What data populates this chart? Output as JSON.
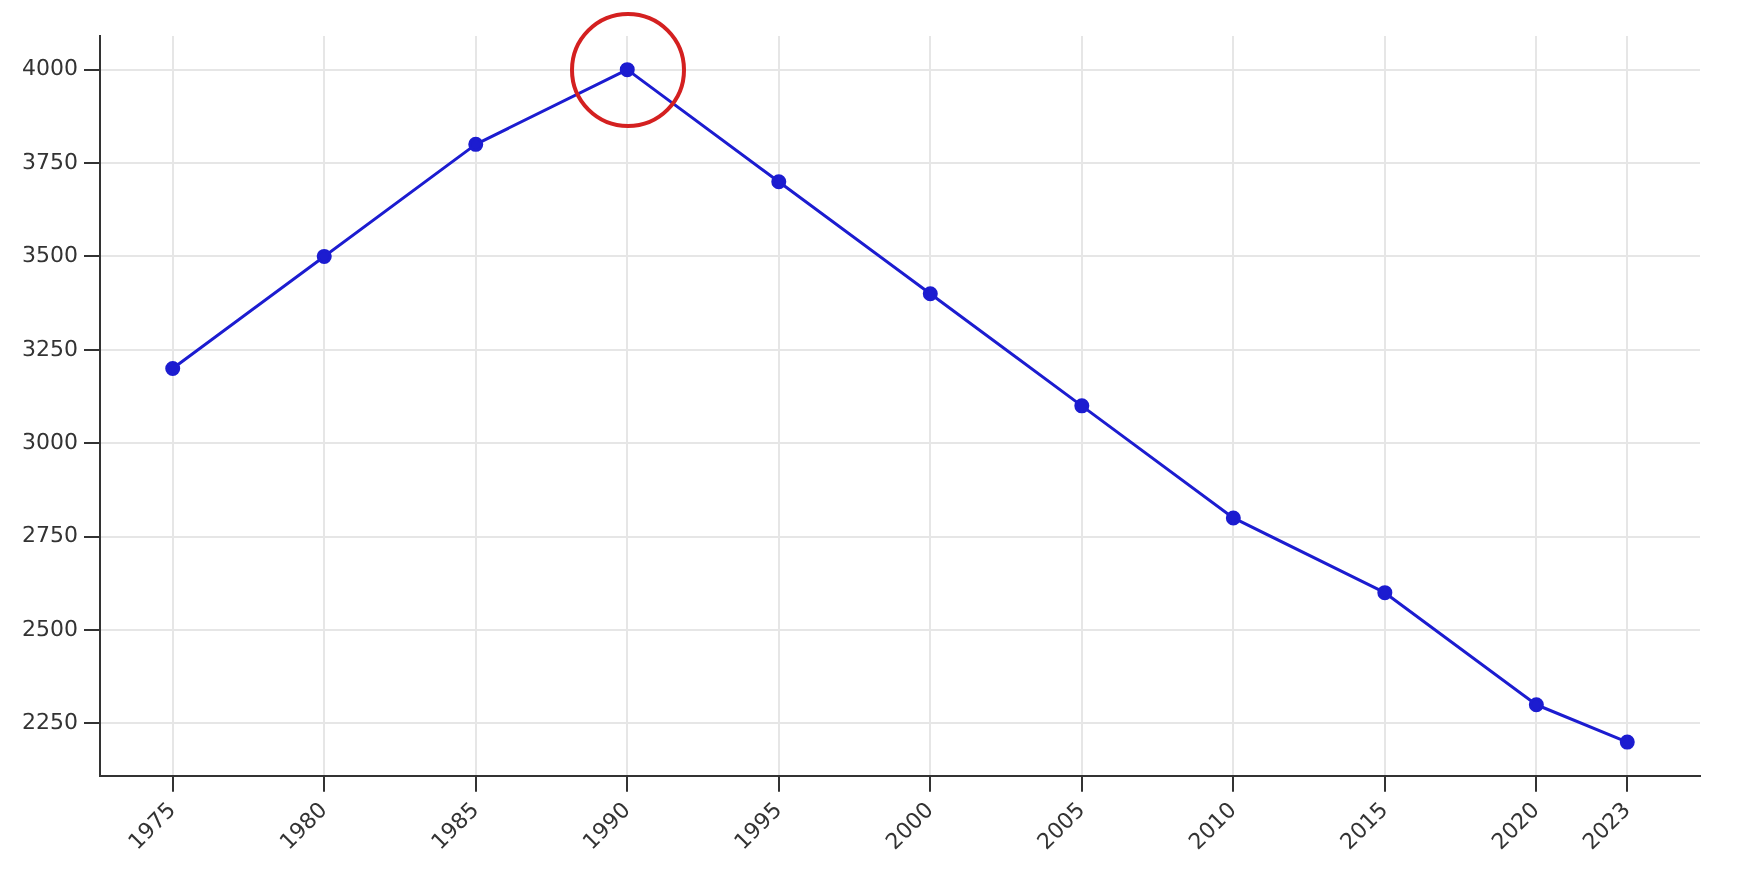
{
  "chart_data": {
    "type": "line",
    "x": [
      1975,
      1980,
      1985,
      1990,
      1995,
      2000,
      2005,
      2010,
      2015,
      2020,
      2023
    ],
    "series": [
      {
        "color": "#1c1cd0",
        "values": [
          3200,
          3500,
          3800,
          4000,
          3700,
          3400,
          3100,
          2800,
          2600,
          2300,
          2200
        ]
      }
    ],
    "xlim": [
      1972.6,
      2025.4
    ],
    "xticks": [
      1975,
      1980,
      1985,
      1990,
      1995,
      2000,
      2005,
      2010,
      2015,
      2020,
      2023
    ],
    "ylim": [
      2110,
      4090
    ],
    "yticks": [
      2250,
      2500,
      2750,
      3000,
      3250,
      3500,
      3750,
      4000
    ],
    "grid": true,
    "legend": false,
    "marker": "circle",
    "line_style": "solid"
  }
}
